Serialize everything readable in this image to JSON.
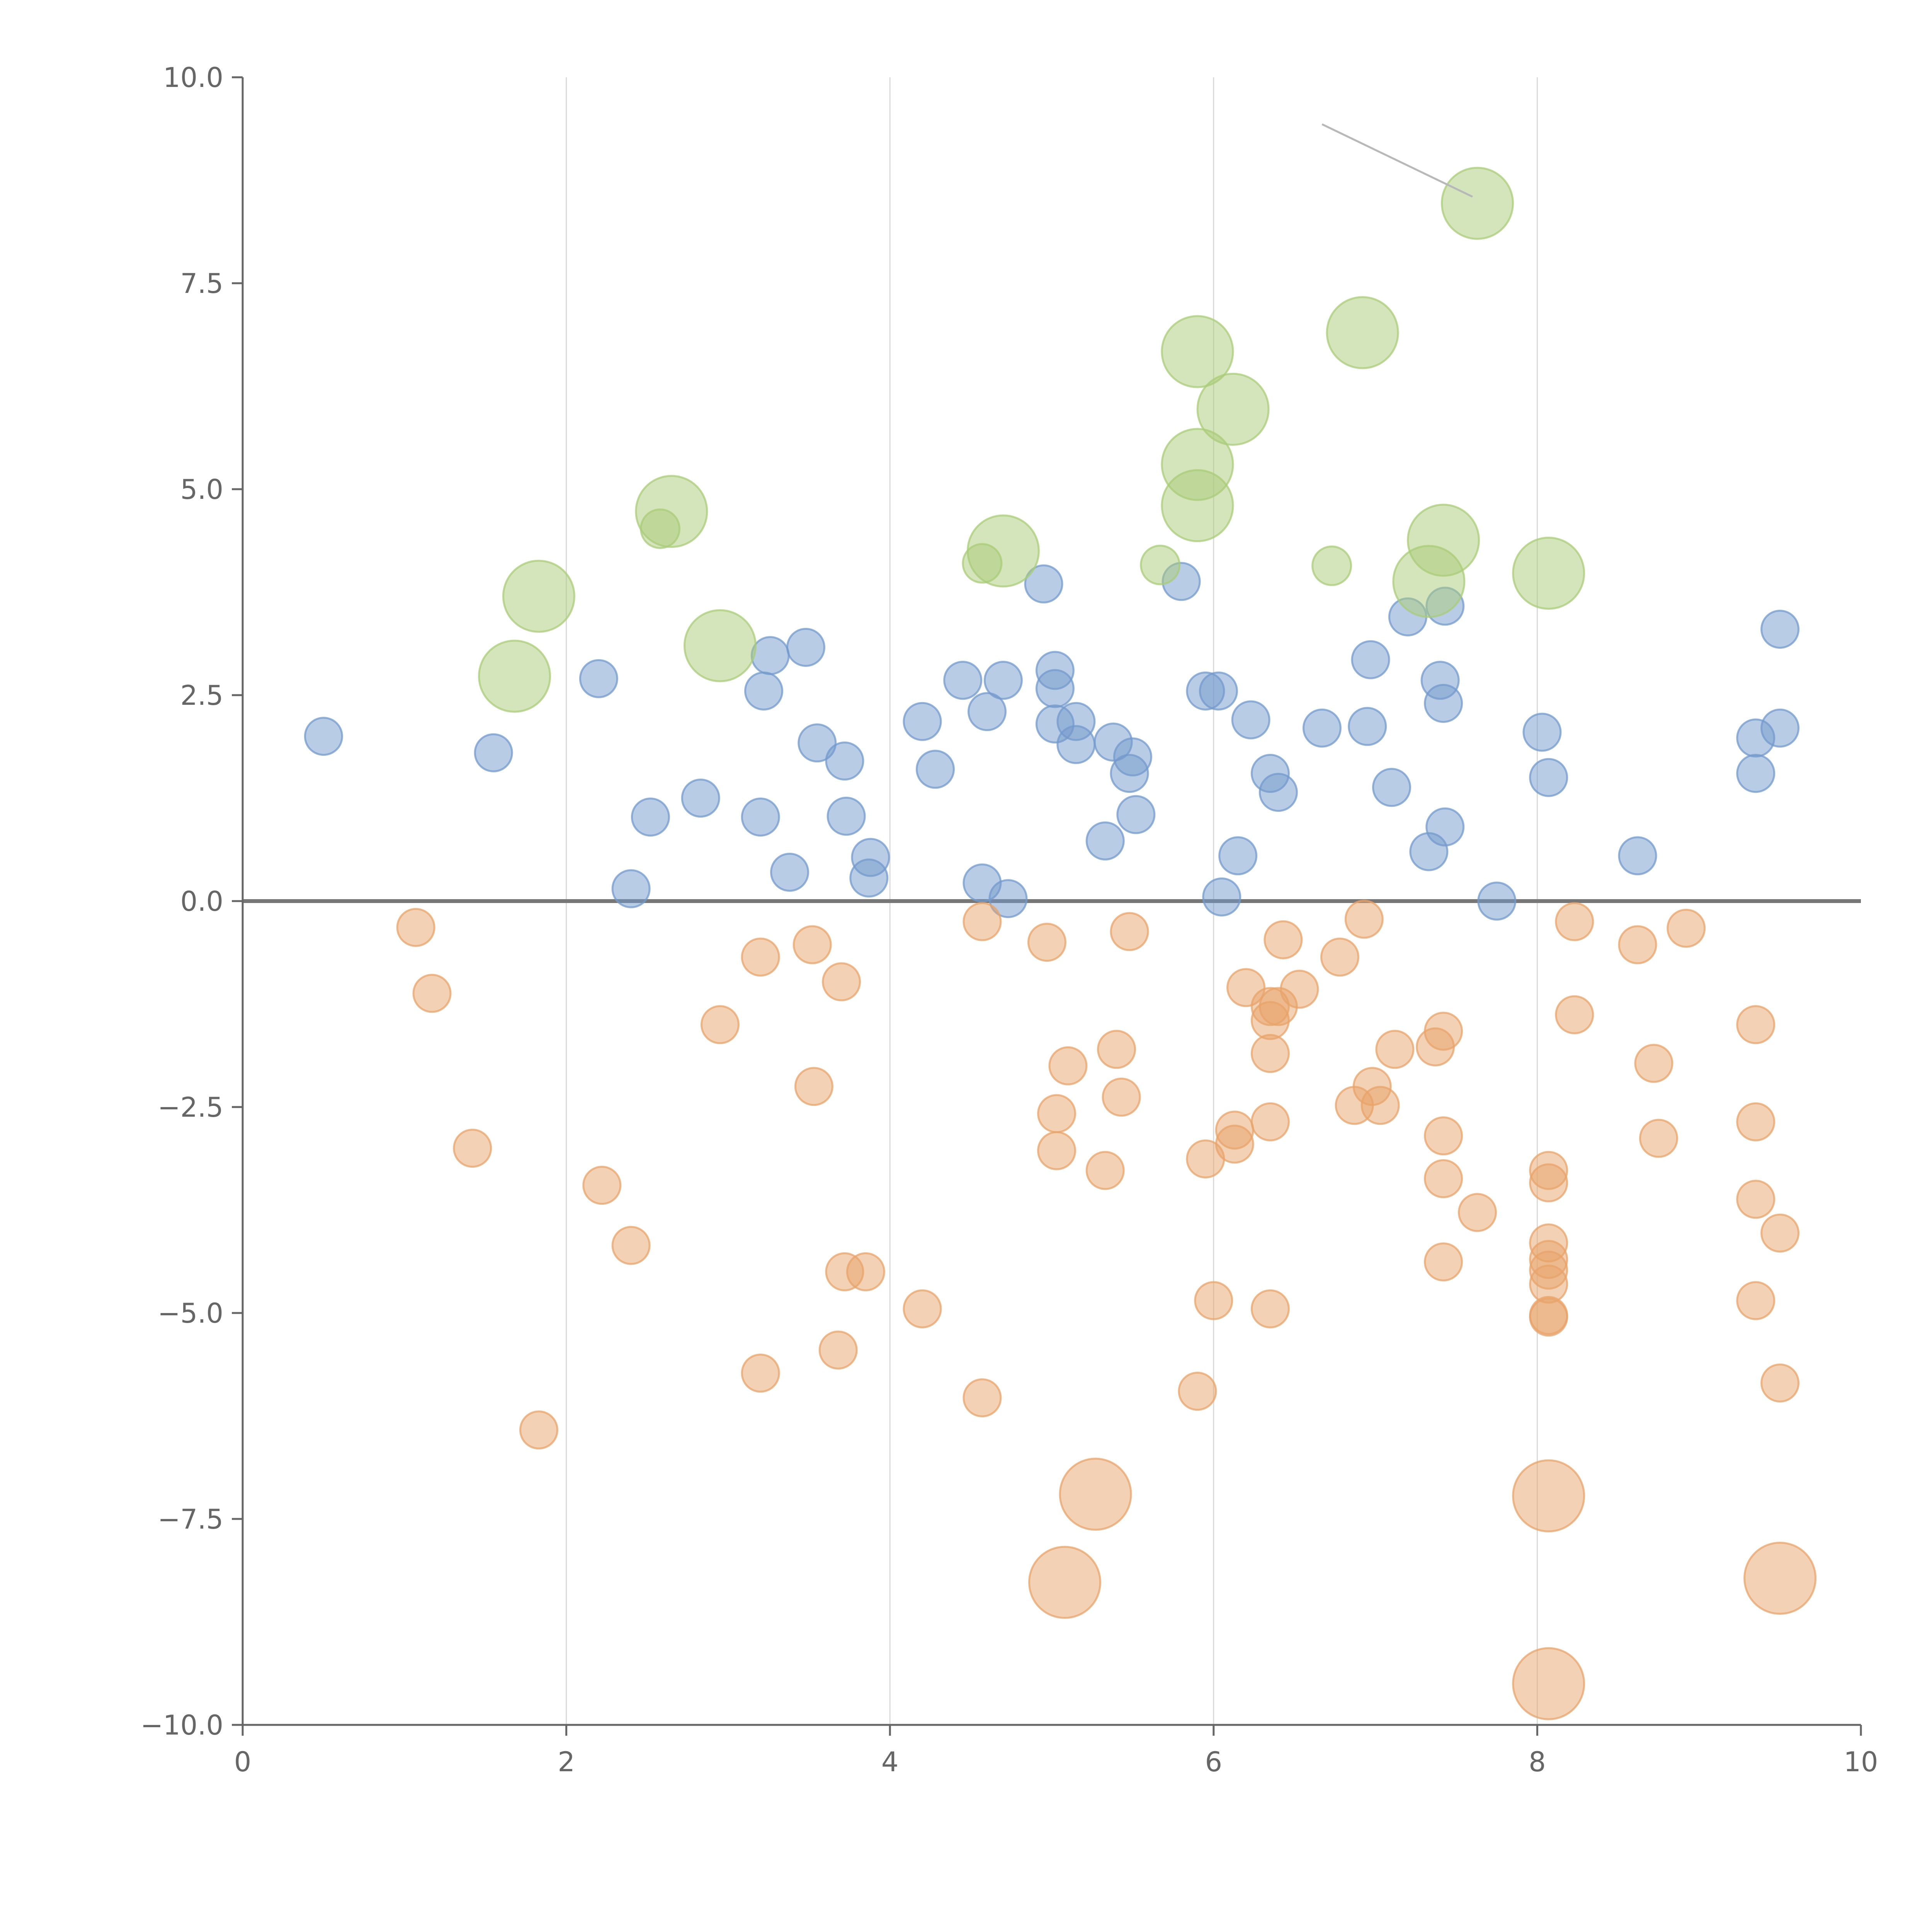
{
  "chart_data": {
    "type": "scatter",
    "title": "",
    "xlabel": "",
    "ylabel": "",
    "xlim": [
      0,
      10
    ],
    "ylim": [
      -10,
      10
    ],
    "x_ticks": [
      "0",
      "2",
      "4",
      "6",
      "8",
      "10"
    ],
    "y_ticks": [
      "10.0",
      "7.5",
      "5.0",
      "2.5",
      "0.0",
      "−2.5",
      "−5.0",
      "−7.5",
      "−10.0"
    ],
    "x_tick_values": [
      0,
      2,
      4,
      6,
      8,
      10
    ],
    "y_tick_values": [
      10,
      7.5,
      5,
      2.5,
      0,
      -2.5,
      -5,
      -7.5,
      -10
    ],
    "x_grid": [
      2,
      4,
      6,
      8
    ],
    "zero_line_y": 0,
    "series": [
      {
        "name": "positive",
        "color": "#7399cc",
        "fill_opacity": 0.5,
        "size": "small",
        "points": [
          [
            0.5,
            2.0
          ],
          [
            1.55,
            1.8
          ],
          [
            2.2,
            2.7
          ],
          [
            2.4,
            0.15
          ],
          [
            2.52,
            1.02
          ],
          [
            2.83,
            1.25
          ],
          [
            3.2,
            1.02
          ],
          [
            3.22,
            2.55
          ],
          [
            3.26,
            2.98
          ],
          [
            3.38,
            0.35
          ],
          [
            3.48,
            3.08
          ],
          [
            3.55,
            1.92
          ],
          [
            3.72,
            1.7
          ],
          [
            3.73,
            1.03
          ],
          [
            3.87,
            0.28
          ],
          [
            3.88,
            0.53
          ],
          [
            4.2,
            2.18
          ],
          [
            4.28,
            1.6
          ],
          [
            4.45,
            2.68
          ],
          [
            4.57,
            0.22
          ],
          [
            4.6,
            2.3
          ],
          [
            4.7,
            2.68
          ],
          [
            4.73,
            0.03
          ],
          [
            4.95,
            3.85
          ],
          [
            5.02,
            2.8
          ],
          [
            5.02,
            2.58
          ],
          [
            5.02,
            2.15
          ],
          [
            5.15,
            1.9
          ],
          [
            5.15,
            2.18
          ],
          [
            5.33,
            0.73
          ],
          [
            5.38,
            1.93
          ],
          [
            5.48,
            1.55
          ],
          [
            5.5,
            1.75
          ],
          [
            5.52,
            1.05
          ],
          [
            5.8,
            3.88
          ],
          [
            5.95,
            2.55
          ],
          [
            6.03,
            2.55
          ],
          [
            6.05,
            0.05
          ],
          [
            6.15,
            0.55
          ],
          [
            6.23,
            2.2
          ],
          [
            6.35,
            1.55
          ],
          [
            6.4,
            1.32
          ],
          [
            6.67,
            2.1
          ],
          [
            6.95,
            2.12
          ],
          [
            6.97,
            2.93
          ],
          [
            7.1,
            1.38
          ],
          [
            7.2,
            3.45
          ],
          [
            7.33,
            0.6
          ],
          [
            7.4,
            2.68
          ],
          [
            7.42,
            2.4
          ],
          [
            7.43,
            3.58
          ],
          [
            7.43,
            0.9
          ],
          [
            7.75,
            0.0
          ],
          [
            8.03,
            2.05
          ],
          [
            8.07,
            1.5
          ],
          [
            8.62,
            0.55
          ],
          [
            9.35,
            1.98
          ],
          [
            9.35,
            1.55
          ],
          [
            9.5,
            3.3
          ],
          [
            9.5,
            2.1
          ]
        ]
      },
      {
        "name": "negative",
        "color": "#e8a36a",
        "fill_opacity": 0.5,
        "size": "small",
        "points": [
          [
            1.07,
            -0.32
          ],
          [
            1.17,
            -1.12
          ],
          [
            1.42,
            -3.0
          ],
          [
            1.83,
            -6.42
          ],
          [
            2.22,
            -3.45
          ],
          [
            2.4,
            -4.18
          ],
          [
            2.95,
            -1.5
          ],
          [
            3.2,
            -0.68
          ],
          [
            3.2,
            -5.73
          ],
          [
            3.52,
            -0.53
          ],
          [
            3.53,
            -2.25
          ],
          [
            3.68,
            -5.45
          ],
          [
            3.7,
            -0.98
          ],
          [
            3.72,
            -4.5
          ],
          [
            3.85,
            -4.5
          ],
          [
            4.2,
            -4.95
          ],
          [
            4.57,
            -0.25
          ],
          [
            4.57,
            -6.03
          ],
          [
            4.97,
            -0.5
          ],
          [
            5.03,
            -2.58
          ],
          [
            5.03,
            -3.03
          ],
          [
            5.1,
            -2.0
          ],
          [
            5.33,
            -3.27
          ],
          [
            5.4,
            -1.8
          ],
          [
            5.43,
            -2.38
          ],
          [
            5.48,
            -0.37
          ],
          [
            5.9,
            -5.95
          ],
          [
            5.95,
            -3.13
          ],
          [
            6.0,
            -4.85
          ],
          [
            6.13,
            -2.78
          ],
          [
            6.13,
            -2.95
          ],
          [
            6.2,
            -1.05
          ],
          [
            6.35,
            -1.28
          ],
          [
            6.35,
            -1.45
          ],
          [
            6.35,
            -1.85
          ],
          [
            6.35,
            -2.68
          ],
          [
            6.35,
            -4.95
          ],
          [
            6.4,
            -1.28
          ],
          [
            6.43,
            -0.47
          ],
          [
            6.53,
            -1.07
          ],
          [
            6.78,
            -0.68
          ],
          [
            6.87,
            -2.48
          ],
          [
            6.93,
            -0.22
          ],
          [
            6.98,
            -2.25
          ],
          [
            7.03,
            -2.48
          ],
          [
            7.12,
            -1.8
          ],
          [
            7.37,
            -1.77
          ],
          [
            7.42,
            -1.58
          ],
          [
            7.42,
            -2.85
          ],
          [
            7.42,
            -3.37
          ],
          [
            7.42,
            -4.38
          ],
          [
            7.63,
            -3.78
          ],
          [
            8.07,
            -3.27
          ],
          [
            8.07,
            -3.42
          ],
          [
            8.07,
            -4.15
          ],
          [
            8.07,
            -4.35
          ],
          [
            8.07,
            -4.48
          ],
          [
            8.07,
            -4.65
          ],
          [
            8.07,
            -5.03
          ],
          [
            8.07,
            -5.05
          ],
          [
            8.23,
            -0.25
          ],
          [
            8.23,
            -1.38
          ],
          [
            8.62,
            -0.53
          ],
          [
            8.72,
            -1.97
          ],
          [
            8.75,
            -2.88
          ],
          [
            8.92,
            -0.33
          ],
          [
            9.35,
            -1.5
          ],
          [
            9.35,
            -2.68
          ],
          [
            9.35,
            -3.62
          ],
          [
            9.35,
            -4.85
          ],
          [
            9.5,
            -4.03
          ],
          [
            9.5,
            -5.85
          ]
        ]
      },
      {
        "name": "positive-large",
        "color": "#a9cc78",
        "fill_opacity": 0.5,
        "size": "large",
        "points": [
          [
            1.68,
            2.73
          ],
          [
            1.83,
            3.7
          ],
          [
            2.65,
            4.73
          ],
          [
            2.95,
            3.1
          ],
          [
            4.7,
            4.25
          ],
          [
            5.9,
            6.67
          ],
          [
            5.9,
            5.3
          ],
          [
            5.9,
            4.8
          ],
          [
            6.12,
            5.97
          ],
          [
            6.92,
            6.9
          ],
          [
            7.33,
            3.88
          ],
          [
            7.42,
            4.38
          ],
          [
            7.63,
            8.47
          ],
          [
            8.07,
            3.98
          ]
        ]
      },
      {
        "name": "positive-medium",
        "color": "#a9cc78",
        "fill_opacity": 0.5,
        "size": "medium",
        "points": [
          [
            2.58,
            4.52
          ],
          [
            4.57,
            4.1
          ],
          [
            5.67,
            4.08
          ],
          [
            6.73,
            4.07
          ]
        ]
      },
      {
        "name": "negative-large",
        "color": "#e8a36a",
        "fill_opacity": 0.5,
        "size": "large",
        "points": [
          [
            5.08,
            -8.27
          ],
          [
            5.27,
            -7.2
          ],
          [
            8.07,
            -7.22
          ],
          [
            8.07,
            -9.5
          ],
          [
            9.5,
            -8.22
          ]
        ]
      }
    ],
    "annotation_lines": [
      {
        "from": [
          6.67,
          9.43
        ],
        "to": [
          7.6,
          8.55
        ],
        "color": "#b8b8b8"
      }
    ]
  }
}
